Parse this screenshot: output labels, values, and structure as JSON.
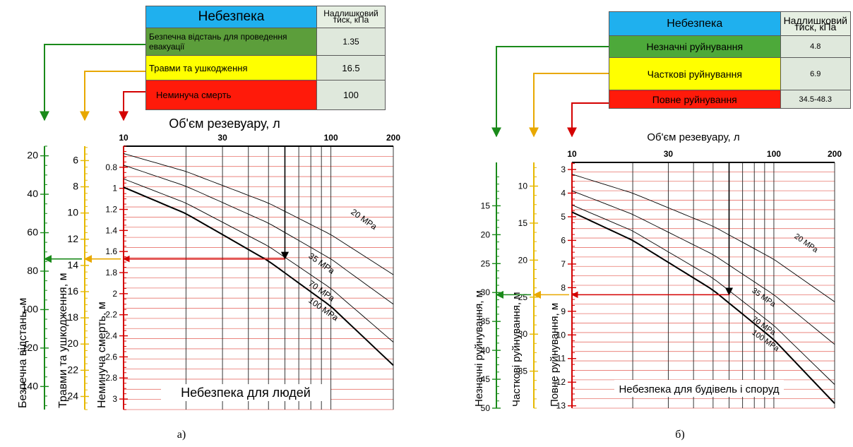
{
  "tables": [
    {
      "header": "Небезпека",
      "unit": "Надлишковий тиск, кПа",
      "rows": [
        {
          "label": "Безпечна відстань для проведення евакуації",
          "value": "1.35",
          "color": "#5c9e3b"
        },
        {
          "label": "Травми та ушкодження",
          "value": "16.5",
          "color": "#ffff00"
        },
        {
          "label": "Неминуча смерть",
          "value": "100",
          "color": "#ff1a0a"
        }
      ]
    },
    {
      "header": "Небезпека",
      "unit": "Надлишковий тиск, кПа",
      "rows": [
        {
          "label": "Незначні руйнування",
          "value": "4.8",
          "color": "#4da93a"
        },
        {
          "label": "Часткові руйнування",
          "value": "6.9",
          "color": "#ffff00"
        },
        {
          "label": "Повне руйнування",
          "value": "34.5-48.3",
          "color": "#ff1a0a"
        }
      ]
    }
  ],
  "chart_data": [
    {
      "type": "line",
      "panel_label": "а)",
      "title": "Небезпека для людей",
      "xlabel": "Об'єм резевуару, л",
      "x_scale": "log",
      "xlim": [
        10,
        200
      ],
      "x_ticks": [
        10,
        30,
        100,
        200
      ],
      "ylim": [
        0.6,
        3.1
      ],
      "y_ticks": [
        0.8,
        1,
        1.2,
        1.4,
        1.6,
        1.8,
        2,
        2.2,
        2.4,
        2.6,
        2.8,
        3
      ],
      "axes": [
        {
          "name": "Безпечна відстань, м",
          "color": "#1a8a1a",
          "range": [
            15,
            152
          ],
          "ticks": [
            20,
            40,
            60,
            80,
            100,
            120,
            140
          ]
        },
        {
          "name": "Травми та ушкодження, м",
          "color": "#e6b800",
          "range": [
            4.9,
            25
          ],
          "ticks": [
            6,
            8,
            10,
            12,
            14,
            16,
            18,
            20,
            22,
            24
          ]
        },
        {
          "name": "Неминуча смерть, м",
          "color": "#d40000",
          "range": [
            0.6,
            3.1
          ],
          "ticks": [
            0.8,
            1,
            1.2,
            1.4,
            1.6,
            1.8,
            2,
            2.2,
            2.4,
            2.6,
            2.8,
            3
          ]
        }
      ],
      "series": [
        {
          "name": "20 MPa",
          "x": [
            10,
            20,
            50,
            100,
            200
          ],
          "y": [
            0.67,
            0.84,
            1.14,
            1.44,
            1.82
          ],
          "bold": false
        },
        {
          "name": "35 MPa",
          "x": [
            10,
            20,
            50,
            100,
            200
          ],
          "y": [
            0.78,
            0.98,
            1.33,
            1.67,
            2.1
          ],
          "bold": false
        },
        {
          "name": "70 MPa",
          "x": [
            10,
            20,
            50,
            100,
            200
          ],
          "y": [
            0.91,
            1.14,
            1.55,
            1.95,
            2.46
          ],
          "bold": false
        },
        {
          "name": "100 MPa",
          "x": [
            10,
            20,
            50,
            100,
            200
          ],
          "y": [
            0.99,
            1.24,
            1.69,
            2.12,
            2.68
          ],
          "bold": true
        }
      ],
      "annotation": {
        "x": 60,
        "y": 1.67
      }
    },
    {
      "type": "line",
      "panel_label": "б)",
      "title": "Небезпека для будівель і споруд",
      "xlabel": "Об'єм резевуару, л",
      "x_scale": "log",
      "xlim": [
        10,
        200
      ],
      "x_ticks": [
        10,
        30,
        100,
        200
      ],
      "ylim": [
        2.7,
        13.1
      ],
      "y_ticks": [
        3,
        4,
        5,
        6,
        7,
        8,
        9,
        10,
        11,
        12,
        13
      ],
      "axes": [
        {
          "name": "Незначні руйнування, м",
          "color": "#1a8a1a",
          "range": [
            7.5,
            50
          ],
          "ticks": [
            15,
            20,
            25,
            30,
            35,
            40,
            45,
            50
          ]
        },
        {
          "name": "Часткові руйнування, м",
          "color": "#e6b800",
          "range": [
            6.8,
            40
          ],
          "ticks": [
            10,
            15,
            20,
            25,
            30,
            35
          ]
        },
        {
          "name": "Повне руйнування, м",
          "color": "#d40000",
          "range": [
            2.7,
            13.1
          ],
          "ticks": [
            3,
            4,
            5,
            6,
            7,
            8,
            9,
            10,
            11,
            12,
            13
          ]
        }
      ],
      "series": [
        {
          "name": "20 MPa",
          "x": [
            10,
            20,
            50,
            100,
            200
          ],
          "y": [
            3.2,
            4.0,
            5.4,
            6.8,
            8.6
          ],
          "bold": false
        },
        {
          "name": "35 MPa",
          "x": [
            10,
            20,
            50,
            100,
            200
          ],
          "y": [
            3.9,
            4.9,
            6.6,
            8.3,
            10.4
          ],
          "bold": false
        },
        {
          "name": "70 MPa",
          "x": [
            10,
            20,
            50,
            100,
            200
          ],
          "y": [
            4.5,
            5.6,
            7.6,
            9.6,
            12.1
          ],
          "bold": false
        },
        {
          "name": "100 MPa",
          "x": [
            10,
            20,
            50,
            100,
            200
          ],
          "y": [
            4.8,
            6.0,
            8.1,
            10.2,
            12.9
          ],
          "bold": true
        }
      ],
      "annotation": {
        "x": 60,
        "y": 8.3
      }
    }
  ]
}
